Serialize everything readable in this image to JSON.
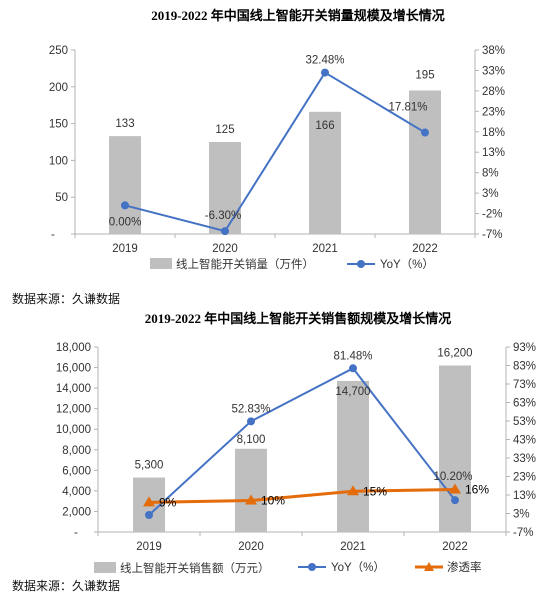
{
  "colors": {
    "bar": "#bfbfbf",
    "yoy_line": "#4472c4",
    "penetration_line": "#e46c0a",
    "axis": "#b3b3b3"
  },
  "chart_data": [
    {
      "type": "bar",
      "title": "2019-2022 年中国线上智能开关销量规模及增长情况",
      "categories": [
        "2019",
        "2020",
        "2021",
        "2022"
      ],
      "series": [
        {
          "name": "线上智能开关销量（万件）",
          "axis": "left",
          "values": [
            133,
            125,
            166,
            195
          ],
          "labels": [
            "133",
            "125",
            "166",
            "195"
          ]
        },
        {
          "name": "YoY（%）",
          "axis": "right",
          "type": "line",
          "values": [
            0.0,
            -6.3,
            32.48,
            17.81
          ],
          "labels": [
            "0.00%",
            "-6.30%",
            "32.48%",
            "17.81%"
          ]
        }
      ],
      "left_axis": {
        "ylim": [
          0,
          250
        ],
        "ticks": [
          "-",
          "50",
          "100",
          "150",
          "200",
          "250"
        ],
        "tick_values": [
          0,
          50,
          100,
          150,
          200,
          250
        ]
      },
      "right_axis": {
        "ylim": [
          -7,
          38
        ],
        "ticks": [
          "-7%",
          "-2%",
          "3%",
          "8%",
          "13%",
          "18%",
          "23%",
          "28%",
          "33%",
          "38%"
        ],
        "tick_values": [
          -7,
          -2,
          3,
          8,
          13,
          18,
          23,
          28,
          33,
          38
        ]
      },
      "grid": false,
      "legend_position": "bottom",
      "source": "数据来源：久谦数据"
    },
    {
      "type": "bar",
      "title": "2019-2022 年中国线上智能开关销售额规模及增长情况",
      "categories": [
        "2019",
        "2020",
        "2021",
        "2022"
      ],
      "series": [
        {
          "name": "线上智能开关销售额（万元）",
          "axis": "left",
          "values": [
            5300,
            8100,
            14700,
            16200
          ],
          "labels": [
            "5,300",
            "8,100",
            "14,700",
            "16,200"
          ]
        },
        {
          "name": "YoY（%）",
          "axis": "right",
          "type": "line",
          "values": [
            null,
            52.83,
            81.48,
            10.2
          ],
          "labels": [
            "",
            "52.83%",
            "81.48%",
            "10.20%"
          ]
        },
        {
          "name": "渗透率",
          "axis": "right",
          "type": "line",
          "values": [
            9,
            10,
            15,
            16
          ],
          "labels": [
            "9%",
            "10%",
            "15%",
            "16%"
          ]
        }
      ],
      "left_axis": {
        "ylim": [
          0,
          18000
        ],
        "ticks": [
          "-",
          "2,000",
          "4,000",
          "6,000",
          "8,000",
          "10,000",
          "12,000",
          "14,000",
          "16,000",
          "18,000"
        ],
        "tick_values": [
          0,
          2000,
          4000,
          6000,
          8000,
          10000,
          12000,
          14000,
          16000,
          18000
        ]
      },
      "right_axis": {
        "ylim": [
          -7,
          93
        ],
        "ticks": [
          "-7%",
          "3%",
          "13%",
          "23%",
          "33%",
          "43%",
          "53%",
          "63%",
          "73%",
          "83%",
          "93%"
        ],
        "tick_values": [
          -7,
          3,
          13,
          23,
          33,
          43,
          53,
          63,
          73,
          83,
          93
        ]
      },
      "grid": false,
      "legend_position": "bottom",
      "source": "数据来源：久谦数据"
    }
  ]
}
